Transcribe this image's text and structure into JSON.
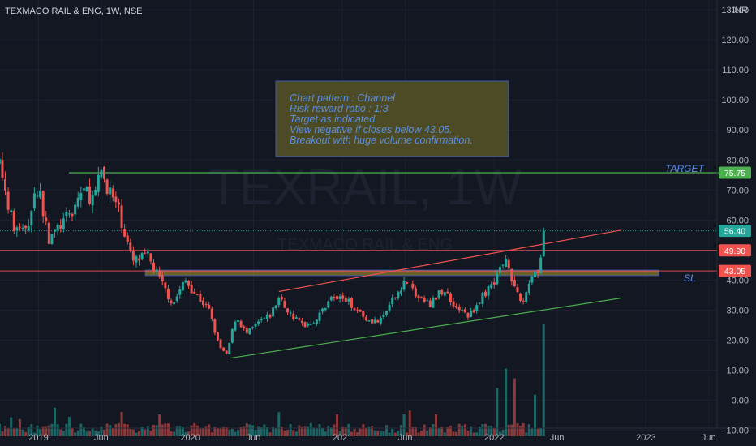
{
  "header": {
    "title": "TEXMACO RAIL & ENG, 1W, NSE",
    "currency": "INR"
  },
  "watermark": {
    "symbol": "TEXRAIL, 1W",
    "name": "TEXMACO RAIL & ENG"
  },
  "note": {
    "lines": [
      "Chart pattern : Channel",
      "Risk reward ratio : 1:3",
      "Target as indicated.",
      "View negative if closes below 43.05.",
      "Breakout with huge volume confirmation."
    ]
  },
  "labels": {
    "target": "TARGET",
    "sl": "SL"
  },
  "colors": {
    "up": "#26a69a",
    "down": "#ef5350",
    "background": "#131722",
    "channel_upper": "#ef5350",
    "channel_lower": "#4caf50",
    "target_line": "#4caf50",
    "zone_fill": "#8a7a2e"
  },
  "chart_data": {
    "type": "candlestick",
    "y_axis": {
      "range": [
        -12,
        133
      ],
      "ticks": [
        "130.00",
        "120.00",
        "110.00",
        "100.00",
        "90.00",
        "80.00",
        "70.00",
        "60.00",
        "50.00",
        "40.00",
        "30.00",
        "20.00",
        "10.00",
        "0.00",
        "-10.00"
      ]
    },
    "x_axis": {
      "range": [
        "2018-09-01",
        "2023-08-01"
      ],
      "ticks": [
        {
          "label": "2019",
          "date": "2019-01-01"
        },
        {
          "label": "Jun",
          "date": "2019-06-01"
        },
        {
          "label": "2020",
          "date": "2020-01-01"
        },
        {
          "label": "Jun",
          "date": "2020-06-01"
        },
        {
          "label": "2021",
          "date": "2021-01-01"
        },
        {
          "label": "Jun",
          "date": "2021-06-01"
        },
        {
          "label": "2022",
          "date": "2022-01-01"
        },
        {
          "label": "Jun",
          "date": "2022-06-01"
        },
        {
          "label": "2023",
          "date": "2023-01-01"
        },
        {
          "label": "Jun",
          "date": "2023-06-01"
        }
      ]
    },
    "price_levels": [
      {
        "value": 75.75,
        "label": "75.75",
        "color": "#4caf50"
      },
      {
        "value": 56.4,
        "label": "56.40",
        "color": "#26a69a"
      },
      {
        "value": 49.9,
        "label": "49.90",
        "color": "#ef5350"
      },
      {
        "value": 43.05,
        "label": "43.05",
        "color": "#ef5350"
      }
    ],
    "zone": {
      "from": 41.5,
      "to": 43.3,
      "start": "2019-09-15",
      "end": "2023-02-01"
    },
    "trendlines": [
      {
        "name": "upper",
        "start": {
          "date": "2020-08-01",
          "value": 36.2
        },
        "end": {
          "date": "2022-11-01",
          "value": 56.6
        },
        "color": "#ef5350"
      },
      {
        "name": "lower",
        "start": {
          "date": "2020-04-05",
          "value": 14.0
        },
        "end": {
          "date": "2022-11-01",
          "value": 34.0
        },
        "color": "#4caf50"
      },
      {
        "name": "target",
        "start": {
          "date": "2019-03-15",
          "value": 75.75
        },
        "end": {
          "date": "2023-08-01",
          "value": 75.75
        },
        "color": "#4caf50"
      }
    ],
    "close_anchors": [
      {
        "date": "2018-09-01",
        "value": 75
      },
      {
        "date": "2018-10-01",
        "value": 78
      },
      {
        "date": "2018-11-01",
        "value": 58
      },
      {
        "date": "2018-12-01",
        "value": 56
      },
      {
        "date": "2019-01-01",
        "value": 72
      },
      {
        "date": "2019-01-25",
        "value": 53
      },
      {
        "date": "2019-02-20",
        "value": 58
      },
      {
        "date": "2019-03-20",
        "value": 62
      },
      {
        "date": "2019-04-15",
        "value": 70
      },
      {
        "date": "2019-05-15",
        "value": 67
      },
      {
        "date": "2019-06-01",
        "value": 76
      },
      {
        "date": "2019-06-20",
        "value": 70
      },
      {
        "date": "2019-07-15",
        "value": 62
      },
      {
        "date": "2019-08-15",
        "value": 46
      },
      {
        "date": "2019-09-20",
        "value": 48
      },
      {
        "date": "2019-10-20",
        "value": 40
      },
      {
        "date": "2019-11-20",
        "value": 32
      },
      {
        "date": "2019-12-20",
        "value": 40
      },
      {
        "date": "2020-01-10",
        "value": 36
      },
      {
        "date": "2020-02-15",
        "value": 30
      },
      {
        "date": "2020-03-10",
        "value": 18
      },
      {
        "date": "2020-03-28",
        "value": 15
      },
      {
        "date": "2020-04-20",
        "value": 28
      },
      {
        "date": "2020-05-15",
        "value": 22
      },
      {
        "date": "2020-06-15",
        "value": 26
      },
      {
        "date": "2020-07-10",
        "value": 28
      },
      {
        "date": "2020-08-01",
        "value": 34
      },
      {
        "date": "2020-09-01",
        "value": 28
      },
      {
        "date": "2020-10-01",
        "value": 25
      },
      {
        "date": "2020-11-01",
        "value": 27
      },
      {
        "date": "2020-12-01",
        "value": 34
      },
      {
        "date": "2021-01-01",
        "value": 34
      },
      {
        "date": "2021-02-01",
        "value": 31
      },
      {
        "date": "2021-03-01",
        "value": 27
      },
      {
        "date": "2021-04-01",
        "value": 26
      },
      {
        "date": "2021-05-01",
        "value": 33
      },
      {
        "date": "2021-06-01",
        "value": 40
      },
      {
        "date": "2021-07-01",
        "value": 34
      },
      {
        "date": "2021-08-01",
        "value": 32
      },
      {
        "date": "2021-09-01",
        "value": 37
      },
      {
        "date": "2021-10-01",
        "value": 31
      },
      {
        "date": "2021-11-01",
        "value": 28
      },
      {
        "date": "2021-12-01",
        "value": 34
      },
      {
        "date": "2022-01-01",
        "value": 40
      },
      {
        "date": "2022-02-01",
        "value": 48
      },
      {
        "date": "2022-02-20",
        "value": 36
      },
      {
        "date": "2022-03-10",
        "value": 32
      },
      {
        "date": "2022-04-01",
        "value": 42
      },
      {
        "date": "2022-04-20",
        "value": 44
      },
      {
        "date": "2022-05-01",
        "value": 56.4
      }
    ],
    "volume_axis": {
      "range": [
        0,
        26
      ],
      "unit_note": "relative",
      "bottom_price": -12
    },
    "volume_spikes": [
      {
        "date": "2022-02-01",
        "value": 15.4
      },
      {
        "date": "2022-02-20",
        "value": 13.2
      },
      {
        "date": "2022-04-10",
        "value": 9.5
      },
      {
        "date": "2022-05-01",
        "value": 25.5
      },
      {
        "date": "2022-01-10",
        "value": 11.0
      },
      {
        "date": "2021-06-01",
        "value": 5.0
      },
      {
        "date": "2020-08-01",
        "value": 5.5
      },
      {
        "date": "2019-10-20",
        "value": 5.0
      }
    ]
  }
}
